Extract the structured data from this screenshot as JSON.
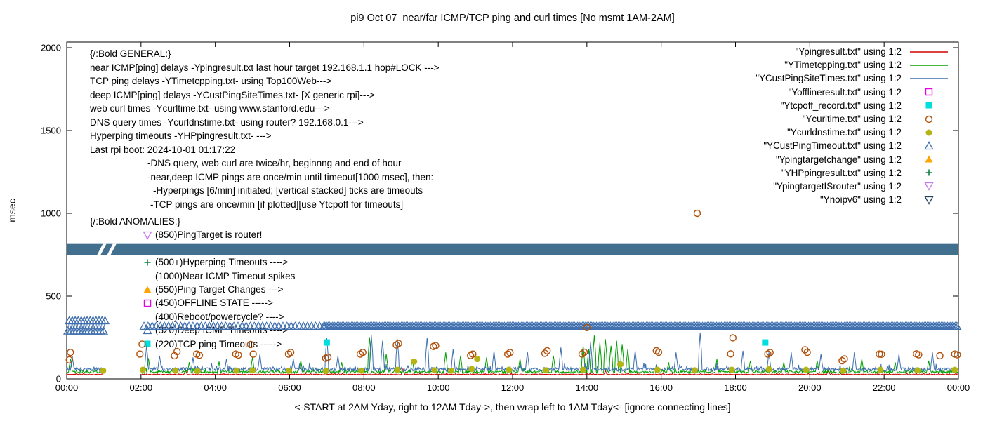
{
  "title": "pi9 Oct 07  near/far ICMP/TCP ping and curl times [No msmt 1AM-2AM]",
  "ylabel": "msec",
  "xlabel": "<-START at 2AM Yday, right to 12AM Tday->, then wrap left to 1AM Tday<- [ignore connecting lines]",
  "axes": {
    "y_ticks": [
      0,
      500,
      1000,
      1500,
      2000
    ],
    "x_tick_labels": [
      "00:00",
      "02:00",
      "04:00",
      "06:00",
      "08:00",
      "10:00",
      "12:00",
      "14:00",
      "16:00",
      "18:00",
      "20:00",
      "22:00",
      "00:00"
    ],
    "ylim": [
      0,
      2000
    ],
    "x_hours": [
      0,
      24
    ],
    "grid": false
  },
  "legend": [
    {
      "label": "\"Ypingresult.txt\" using 1:2",
      "sample": "line",
      "color": "#d00000"
    },
    {
      "label": "\"YTimetcpping.txt\" using 1:2",
      "sample": "line",
      "color": "#00a000"
    },
    {
      "label": "\"YCustPingSiteTimes.txt\" using 1:2",
      "sample": "line",
      "color": "#3f6fae"
    },
    {
      "label": "\"Yofflineresult.txt\" using 1:2",
      "sample": "square-open",
      "color": "#e800e8"
    },
    {
      "label": "\"Ytcpoff_record.txt\" using 1:2",
      "sample": "square-filled",
      "color": "#00dede"
    },
    {
      "label": "\"Ycurltime.txt\" using 1:2",
      "sample": "circle-open",
      "color": "#b0500a"
    },
    {
      "label": "\"Ycurldnstime.txt\" using 1:2",
      "sample": "circle-filled",
      "color": "#b4b414"
    },
    {
      "label": "\"YCustPingTimeout.txt\" using 1:2",
      "sample": "triangle-open",
      "color": "#3f6fae"
    },
    {
      "label": "\"Ypingtargetchange\" using 1:2",
      "sample": "triangle-filled",
      "color": "#ffa400"
    },
    {
      "label": "\"YHPpingresult.txt\" using 1:2",
      "sample": "plus",
      "color": "#0c8040"
    },
    {
      "label": "\"YpingtargetISrouter\" using 1:2",
      "sample": "nabla-open",
      "color": "#c47ae8"
    },
    {
      "label": "\"Ynoipv6\" using 1:2",
      "sample": "nabla-open",
      "color": "#24425e"
    }
  ],
  "general_block": {
    "lines": [
      {
        "text": "{/:Bold GENERAL:}",
        "indent": 0
      },
      {
        "text": "near ICMP[ping] delays -Ypingresult.txt last hour target 192.168.1.1 hop#LOCK --->",
        "indent": 0
      },
      {
        "text": "TCP ping delays -YTimetcpping.txt- using Top100Web--->",
        "indent": 0
      },
      {
        "text": "deep ICMP[ping] delays -YCustPingSiteTimes.txt- [X generic rpi]--->",
        "indent": 0
      },
      {
        "text": "web curl times -Ycurltime.txt- using www.stanford.edu--->",
        "indent": 0
      },
      {
        "text": "DNS query times -Ycurldnstime.txt- using router? 192.168.0.1--->",
        "indent": 0
      },
      {
        "text": "Hyperping timeouts -YHPpingresult.txt- --->",
        "indent": 0
      },
      {
        "text": "Last rpi boot: 2024-10-01 01:17:22",
        "indent": 0
      },
      {
        "text": "-DNS query, web curl are twice/hr, beginnng and end of hour",
        "indent": 82
      },
      {
        "text": "-near,deep ICMP pings are once/min until timeout[1000 msec], then:",
        "indent": 82
      },
      {
        "text": "-Hyperpings [6/min] initiated; [vertical stacked] ticks are timeouts",
        "indent": 90
      },
      {
        "text": "-TCP pings are once/min [if plotted][use Ytcpoff for timeouts]",
        "indent": 86
      }
    ]
  },
  "anomalies_block": {
    "heading": "{/:Bold ANOMALIES:}",
    "items": [
      {
        "marker": "nabla-open",
        "color": "#c47ae8",
        "text": "(850)PingTarget is router!"
      },
      {
        "marker": "nabla-open",
        "color": "#24425e",
        "text": ""
      },
      {
        "marker": "plus",
        "color": "#0c8040",
        "text": "(500+)Hyperping Timeouts ---->"
      },
      {
        "marker": null,
        "color": null,
        "text": "(1000)Near ICMP Timeout spikes"
      },
      {
        "marker": "triangle-filled",
        "color": "#ffa400",
        "text": "(550)Ping Target Changes --->"
      },
      {
        "marker": "square-open",
        "color": "#e800e8",
        "text": "(450)OFFLINE STATE ----->"
      },
      {
        "marker": null,
        "color": null,
        "text": "(400)Reboot/powercycle? ---->"
      },
      {
        "marker": "triangle-open",
        "color": "#3f6fae",
        "text": "(320)Deep ICMP Timeouts ---->"
      },
      {
        "marker": "square-filled",
        "color": "#00dede",
        "text": "(220)TCP ping Timeouts ----->"
      }
    ]
  },
  "chart_data": {
    "type": "line",
    "title": "pi9 Oct 07  near/far ICMP/TCP ping and curl times [No msmt 1AM-2AM]",
    "xlabel": "<-START at 2AM Yday, right to 12AM Tday->, then wrap left to 1AM Tday<- [ignore connecting lines]",
    "ylabel": "msec",
    "ylim": [
      0,
      2000
    ],
    "x_hours": [
      0,
      24
    ],
    "gap_hours": [
      1.0,
      2.0
    ],
    "line_series": [
      {
        "name": "Ypingresult.txt",
        "color": "#d00000",
        "baseline": 27,
        "noise": 5,
        "seed": 11,
        "spikes": [
          [
            3.2,
            55
          ],
          [
            9.05,
            60
          ],
          [
            14.5,
            50
          ],
          [
            20.5,
            55
          ]
        ]
      },
      {
        "name": "YTimetcpping.txt",
        "color": "#00a000",
        "baseline": 42,
        "noise": 16,
        "seed": 22,
        "spikes": [
          [
            0.1,
            120
          ],
          [
            2.2,
            125
          ],
          [
            3.3,
            100
          ],
          [
            4.1,
            105
          ],
          [
            5.0,
            130
          ],
          [
            6.3,
            110
          ],
          [
            7.4,
            100
          ],
          [
            8.15,
            252
          ],
          [
            8.6,
            150
          ],
          [
            9.3,
            120
          ],
          [
            10.2,
            160
          ],
          [
            10.6,
            140
          ],
          [
            11.3,
            130
          ],
          [
            12.2,
            120
          ],
          [
            13.1,
            140
          ],
          [
            13.9,
            200
          ],
          [
            14.05,
            180
          ],
          [
            14.2,
            262
          ],
          [
            14.35,
            220
          ],
          [
            14.5,
            240
          ],
          [
            14.65,
            200
          ],
          [
            14.8,
            230
          ],
          [
            14.95,
            210
          ],
          [
            15.1,
            180
          ],
          [
            16.2,
            100
          ],
          [
            17.5,
            120
          ],
          [
            18.4,
            110
          ],
          [
            19.3,
            100
          ],
          [
            20.2,
            110
          ],
          [
            21.4,
            120
          ],
          [
            22.3,
            100
          ],
          [
            23.2,
            110
          ]
        ]
      },
      {
        "name": "YCustPingSiteTimes.txt",
        "color": "#3f6fae",
        "baseline": 58,
        "noise": 22,
        "seed": 33,
        "spikes": [
          [
            0.15,
            140
          ],
          [
            2.15,
            200
          ],
          [
            2.5,
            140
          ],
          [
            3.4,
            130
          ],
          [
            4.3,
            120
          ],
          [
            5.2,
            150
          ],
          [
            6.1,
            120
          ],
          [
            7.0,
            250
          ],
          [
            7.3,
            140
          ],
          [
            8.2,
            262
          ],
          [
            8.5,
            230
          ],
          [
            8.9,
            240
          ],
          [
            9.7,
            250
          ],
          [
            10.4,
            180
          ],
          [
            11.5,
            170
          ],
          [
            12.4,
            165
          ],
          [
            13.3,
            190
          ],
          [
            14.1,
            220
          ],
          [
            15.3,
            170
          ],
          [
            16.4,
            160
          ],
          [
            17.05,
            280
          ],
          [
            18.2,
            170
          ],
          [
            18.9,
            160
          ],
          [
            19.5,
            160
          ],
          [
            20.3,
            150
          ],
          [
            21.2,
            160
          ],
          [
            22.4,
            150
          ],
          [
            23.3,
            160
          ]
        ]
      }
    ],
    "scatter_series": [
      {
        "name": "Yofflineresult.txt",
        "marker": "square-open",
        "color": "#e800e8",
        "points": []
      },
      {
        "name": "Ytcpoff_record.txt",
        "marker": "square-filled",
        "color": "#00dede",
        "points": [
          [
            7.0,
            220
          ],
          [
            18.8,
            220
          ]
        ]
      },
      {
        "name": "Ycurltime.txt",
        "marker": "circle-open",
        "color": "#b0500a",
        "points": [
          [
            0.07,
            115
          ],
          [
            0.1,
            160
          ],
          [
            1.97,
            150
          ],
          [
            2.03,
            210
          ],
          [
            2.9,
            140
          ],
          [
            2.97,
            165
          ],
          [
            3.5,
            150
          ],
          [
            3.57,
            143
          ],
          [
            4.55,
            150
          ],
          [
            4.62,
            144
          ],
          [
            4.95,
            208
          ],
          [
            5.02,
            150
          ],
          [
            5.97,
            150
          ],
          [
            6.03,
            160
          ],
          [
            6.97,
            125
          ],
          [
            7.03,
            131
          ],
          [
            7.9,
            150
          ],
          [
            7.97,
            160
          ],
          [
            8.87,
            205
          ],
          [
            8.93,
            214
          ],
          [
            9.87,
            196
          ],
          [
            9.93,
            201
          ],
          [
            10.87,
            141
          ],
          [
            10.93,
            150
          ],
          [
            11.87,
            150
          ],
          [
            11.93,
            159
          ],
          [
            12.87,
            155
          ],
          [
            12.93,
            170
          ],
          [
            13.87,
            150
          ],
          [
            13.93,
            161
          ],
          [
            14.0,
            310
          ],
          [
            15.87,
            170
          ],
          [
            15.93,
            161
          ],
          [
            16.97,
            1000
          ],
          [
            17.87,
            151
          ],
          [
            17.93,
            248
          ],
          [
            18.87,
            150
          ],
          [
            18.93,
            159
          ],
          [
            19.87,
            176
          ],
          [
            19.93,
            161
          ],
          [
            20.87,
            110
          ],
          [
            20.93,
            121
          ],
          [
            21.87,
            150
          ],
          [
            21.93,
            149
          ],
          [
            22.87,
            151
          ],
          [
            22.93,
            146
          ],
          [
            23.5,
            140
          ],
          [
            23.9,
            150
          ],
          [
            23.97,
            146
          ]
        ]
      },
      {
        "name": "Ycurldnstime.txt",
        "marker": "circle-filled",
        "color": "#b4b414",
        "points": [
          [
            0.98,
            50
          ],
          [
            2.05,
            55
          ],
          [
            2.93,
            50
          ],
          [
            3.52,
            48
          ],
          [
            4.57,
            50
          ],
          [
            5.0,
            52
          ],
          [
            5.98,
            50
          ],
          [
            6.98,
            48
          ],
          [
            7.93,
            50
          ],
          [
            8.9,
            55
          ],
          [
            9.35,
            105
          ],
          [
            9.9,
            52
          ],
          [
            10.35,
            50
          ],
          [
            10.9,
            60
          ],
          [
            11.05,
            120
          ],
          [
            11.9,
            55
          ],
          [
            12.9,
            52
          ],
          [
            13.9,
            55
          ],
          [
            14.9,
            88
          ],
          [
            15.9,
            55
          ],
          [
            16.9,
            52
          ],
          [
            17.9,
            55
          ],
          [
            18.9,
            58
          ],
          [
            19.9,
            55
          ],
          [
            20.9,
            50
          ],
          [
            21.9,
            55
          ],
          [
            22.9,
            52
          ],
          [
            23.9,
            55
          ]
        ]
      },
      {
        "name": "Ypingtargetchange",
        "marker": "triangle-filled",
        "color": "#ffa400",
        "points": []
      },
      {
        "name": "YHPpingresult.txt",
        "marker": "plus",
        "color": "#0c8040",
        "points": []
      },
      {
        "name": "YpingtargetISrouter",
        "marker": "nabla-open",
        "color": "#c47ae8",
        "points": []
      },
      {
        "name": "Ynoipv6",
        "marker": "nabla-open",
        "color": "#24425e",
        "points": []
      }
    ],
    "timeout_triangles": {
      "name": "YCustPingTimeout.txt",
      "color": "#3f6fae",
      "segments": [
        {
          "from": 0.03,
          "to": 1.03,
          "step": 0.04,
          "alternate": [
            290,
            352
          ],
          "connect": true
        },
        {
          "from": 2.08,
          "to": 6.92,
          "step": 0.11,
          "y": 318
        },
        {
          "from": 6.95,
          "to": 23.97,
          "step": 0.042,
          "y": 318
        }
      ]
    },
    "noipv6_band": {
      "msec_bottom": 750,
      "msec_top": 815,
      "color": "#436f8e",
      "slash_hours": [
        0.82,
        1.09
      ]
    }
  }
}
